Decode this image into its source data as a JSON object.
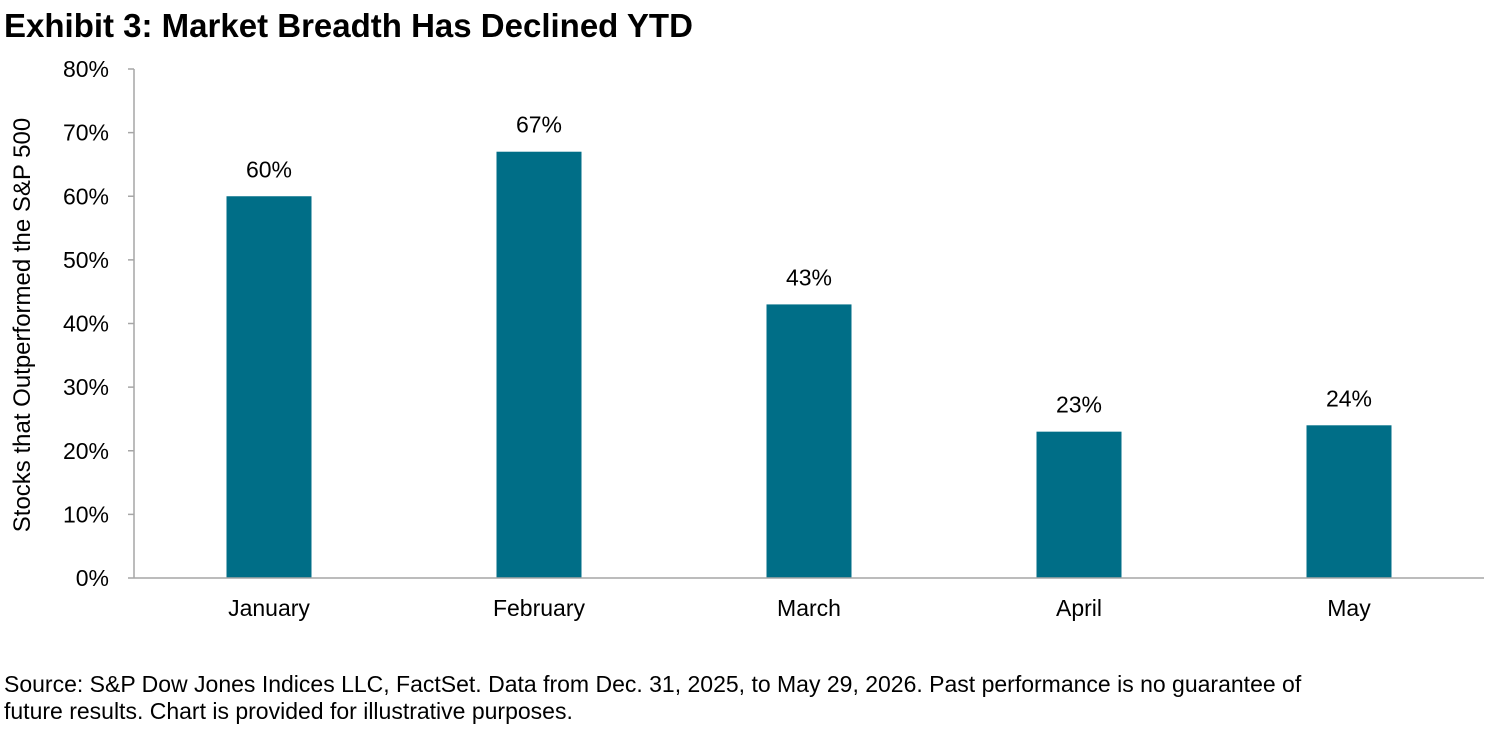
{
  "title": "Exhibit 3: Market Breadth Has Declined YTD",
  "footnote": {
    "line1": "Source: S&P Dow Jones Indices LLC, FactSet. Data from Dec. 31, 2025, to May 29, 2026. Past performance is no guarantee of",
    "line2": "future results. Chart is provided for illustrative purposes."
  },
  "colors": {
    "bar": "#006e87",
    "axis": "#a6a6a6"
  },
  "chart_data": {
    "type": "bar",
    "title": "Exhibit 3: Market Breadth Has Declined YTD",
    "xlabel": "",
    "ylabel": "Stocks that Outperformed the S&P 500",
    "categories": [
      "January",
      "February",
      "March",
      "April",
      "May"
    ],
    "values": [
      60,
      67,
      43,
      23,
      24
    ],
    "data_labels": [
      "60%",
      "67%",
      "43%",
      "23%",
      "24%"
    ],
    "ylim": [
      0,
      80
    ],
    "yticks": [
      0,
      10,
      20,
      30,
      40,
      50,
      60,
      70,
      80
    ],
    "ytick_labels": [
      "0%",
      "10%",
      "20%",
      "30%",
      "40%",
      "50%",
      "60%",
      "70%",
      "80%"
    ],
    "grid": false,
    "legend": "none"
  }
}
